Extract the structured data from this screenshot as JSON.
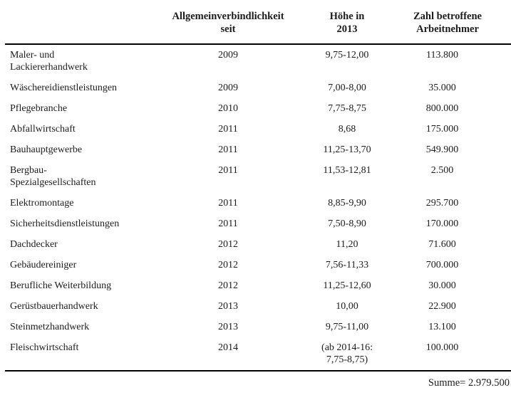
{
  "table": {
    "header": {
      "col_branche": "",
      "col_seit": "Allgemeinverbindlichkeit\nseit",
      "col_hoehe": "Höhe in\n2013",
      "col_zahl": "Zahl betroffene\nArbeitnehmer"
    },
    "rows": [
      {
        "branche": "Maler- und\nLackiererhandwerk",
        "seit": "2009",
        "hoehe": "9,75-12,00",
        "zahl": "113.800"
      },
      {
        "branche": "Wäschereidienstleistungen",
        "seit": "2009",
        "hoehe": "7,00-8,00",
        "zahl": "35.000"
      },
      {
        "branche": "Pflegebranche",
        "seit": "2010",
        "hoehe": "7,75-8,75",
        "zahl": "800.000"
      },
      {
        "branche": "Abfallwirtschaft",
        "seit": "2011",
        "hoehe": "8,68",
        "zahl": "175.000"
      },
      {
        "branche": "Bauhauptgewerbe",
        "seit": "2011",
        "hoehe": "11,25-13,70",
        "zahl": "549.900"
      },
      {
        "branche": "Bergbau-\nSpezialgesellschaften",
        "seit": "2011",
        "hoehe": "11,53-12,81",
        "zahl": "2.500"
      },
      {
        "branche": "Elektromontage",
        "seit": "2011",
        "hoehe": "8,85-9,90",
        "zahl": "295.700"
      },
      {
        "branche": "Sicherheitsdienstleistungen",
        "seit": "2011",
        "hoehe": "7,50-8,90",
        "zahl": "170.000"
      },
      {
        "branche": "Dachdecker",
        "seit": "2012",
        "hoehe": "11,20",
        "zahl": "71.600"
      },
      {
        "branche": "Gebäudereiniger",
        "seit": "2012",
        "hoehe": "7,56-11,33",
        "zahl": "700.000"
      },
      {
        "branche": "Berufliche Weiterbildung",
        "seit": "2012",
        "hoehe": "11,25-12,60",
        "zahl": "30.000"
      },
      {
        "branche": "Gerüstbauerhandwerk",
        "seit": "2013",
        "hoehe": "10,00",
        "zahl": "22.900"
      },
      {
        "branche": "Steinmetzhandwerk",
        "seit": "2013",
        "hoehe": "9,75-11,00",
        "zahl": "13.100"
      },
      {
        "branche": "Fleischwirtschaft",
        "seit": "2014",
        "hoehe": "(ab 2014-16:\n7,75-8,75)",
        "zahl": "100.000"
      }
    ],
    "footer": {
      "summe": "Summe= 2.979.500"
    }
  },
  "colors": {
    "text": "#1c1c1c",
    "rule": "#000000",
    "background": "#ffffff"
  }
}
